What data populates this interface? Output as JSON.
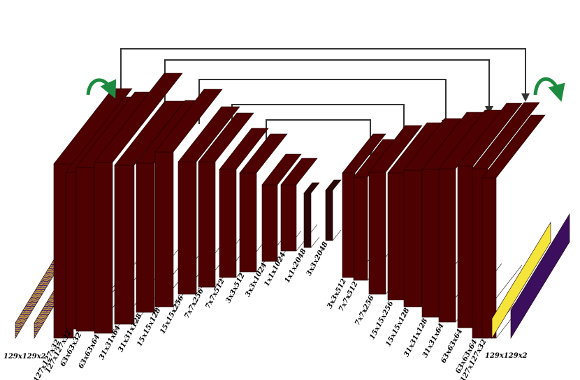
{
  "input": {
    "label": "129x129x2"
  },
  "output": {
    "label": "129x129x2"
  },
  "layers": [
    "127x127x32",
    "127x127x32",
    "63x63x32",
    "63x63x64",
    "31x31x64",
    "31x31x128",
    "15x15x128",
    "15x15x256",
    "7x7x256",
    "7x7x512",
    "3x3x512",
    "3x3x1024",
    "1x1x1024",
    "1x1x2048",
    "3x3x2048",
    "3x3x512",
    "7x7x512",
    "7x7x256",
    "15x15x256",
    "15x15x128",
    "31x31x128",
    "31x31x64",
    "63x63x64",
    "63x63x64",
    "127x127x32"
  ],
  "colors": {
    "layer": "#4d0101",
    "bottleneck": "#2a0606",
    "input_stripes": [
      "#3f1a6e",
      "#c49a3a"
    ],
    "output_a": "#f5e43a",
    "output_b": "#3b0e5e",
    "skip_arrow": "#333333",
    "curved_arrow": "#1d8b3f"
  }
}
